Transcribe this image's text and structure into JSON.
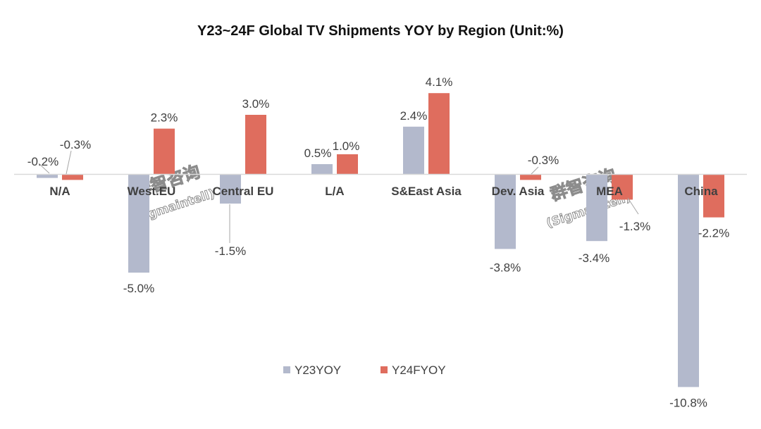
{
  "chart_data": {
    "type": "bar",
    "title": "Y23~24F Global TV Shipments YOY by Region (Unit:%)",
    "categories": [
      "N/A",
      "West.EU",
      "Central EU",
      "L/A",
      "S&East Asia",
      "Dev. Asia",
      "MEA",
      "China"
    ],
    "series": [
      {
        "name": "Y23YOY",
        "color": "#b3b9cc",
        "values": [
          -0.2,
          -5.0,
          -1.5,
          0.5,
          2.4,
          -3.8,
          -3.4,
          -10.8
        ],
        "labels": [
          "-0.2%",
          "-5.0%",
          "-1.5%",
          "0.5%",
          "2.4%",
          "-3.8%",
          "-3.4%",
          "-10.8%"
        ]
      },
      {
        "name": "Y24FYOY",
        "color": "#df6d5e",
        "values": [
          -0.3,
          2.3,
          3.0,
          1.0,
          4.1,
          -0.3,
          -1.3,
          -2.2
        ],
        "labels": [
          "-0.3%",
          "2.3%",
          "3.0%",
          "1.0%",
          "4.1%",
          "-0.3%",
          "-1.3%",
          "-2.2%"
        ]
      }
    ],
    "legend_position": "bottom-center",
    "grid": false,
    "axis_line_color": "#d9d9d9",
    "watermark": {
      "text_cn": "群智咨询",
      "text_en": "(Sigmaintell)"
    }
  }
}
